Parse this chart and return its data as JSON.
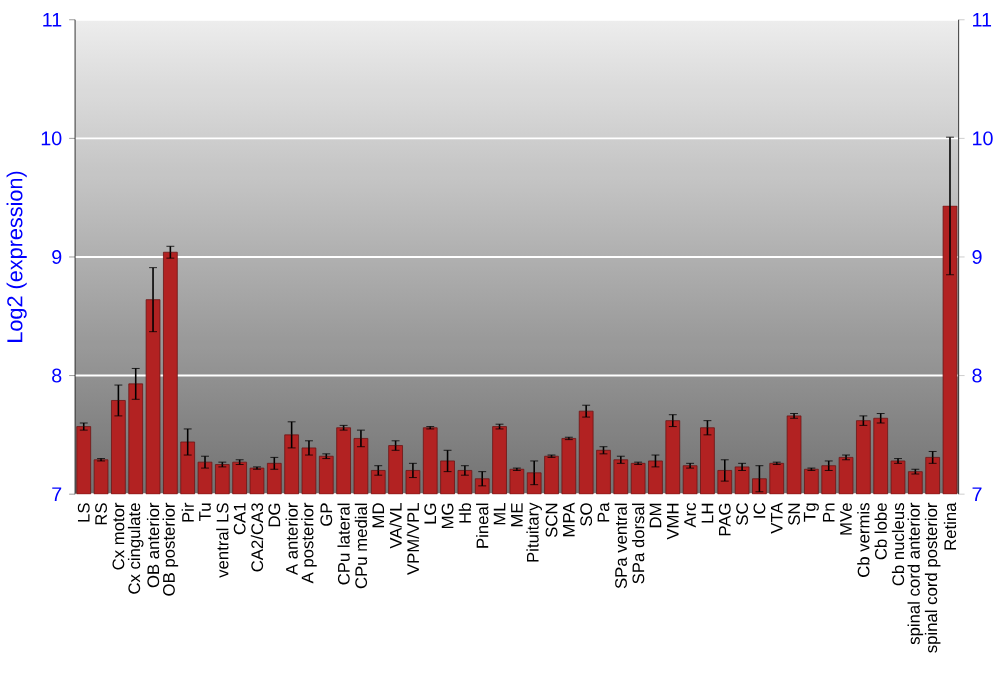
{
  "chart_data": {
    "type": "bar",
    "ylabel": "Log2 (expression)",
    "categories": [
      "LS",
      "RS",
      "Cx motor",
      "Cx cingulate",
      "OB anterior",
      "OB posterior",
      "Pir",
      "Tu",
      "ventral LS",
      "CA1",
      "CA2/CA3",
      "DG",
      "A anterior",
      "A posterior",
      "GP",
      "CPu lateral",
      "CPu medial",
      "MD",
      "VA/VL",
      "VPM/VPL",
      "LG",
      "MG",
      "Hb",
      "Pineal",
      "ML",
      "ME",
      "Pituitary",
      "SCN",
      "MPA",
      "SO",
      "Pa",
      "SPa ventral",
      "SPa dorsal",
      "DM",
      "VMH",
      "Arc",
      "LH",
      "PAG",
      "SC",
      "IC",
      "VTA",
      "SN",
      "Tg",
      "Pn",
      "MVe",
      "Cb vermis",
      "Cb lobe",
      "Cb nucleus",
      "spinal cord anterior",
      "spinal cord posterior",
      "Retina"
    ],
    "values": [
      7.57,
      7.29,
      7.79,
      7.93,
      8.64,
      9.04,
      7.44,
      7.27,
      7.25,
      7.27,
      7.22,
      7.26,
      7.5,
      7.39,
      7.32,
      7.56,
      7.47,
      7.2,
      7.41,
      7.2,
      7.56,
      7.28,
      7.2,
      7.13,
      7.57,
      7.21,
      7.18,
      7.32,
      7.47,
      7.7,
      7.37,
      7.29,
      7.26,
      7.28,
      7.62,
      7.24,
      7.56,
      7.2,
      7.23,
      7.13,
      7.26,
      7.66,
      7.21,
      7.24,
      7.31,
      7.62,
      7.64,
      7.28,
      7.19,
      7.31,
      9.43
    ],
    "errors": [
      0.03,
      0.01,
      0.13,
      0.13,
      0.27,
      0.05,
      0.11,
      0.05,
      0.02,
      0.02,
      0.01,
      0.05,
      0.11,
      0.06,
      0.02,
      0.02,
      0.07,
      0.04,
      0.04,
      0.06,
      0.01,
      0.09,
      0.04,
      0.06,
      0.02,
      0.01,
      0.1,
      0.01,
      0.01,
      0.05,
      0.03,
      0.03,
      0.01,
      0.05,
      0.05,
      0.02,
      0.06,
      0.09,
      0.03,
      0.11,
      0.01,
      0.02,
      0.01,
      0.04,
      0.02,
      0.04,
      0.04,
      0.02,
      0.02,
      0.05,
      0.58
    ],
    "color": "#b22222",
    "ylim": [
      7,
      11
    ],
    "yticks": [
      7,
      8,
      9,
      10,
      11
    ],
    "y2lim": [
      7,
      11
    ],
    "y2ticks": [
      7,
      8,
      9,
      10,
      11
    ],
    "grid": "y"
  }
}
